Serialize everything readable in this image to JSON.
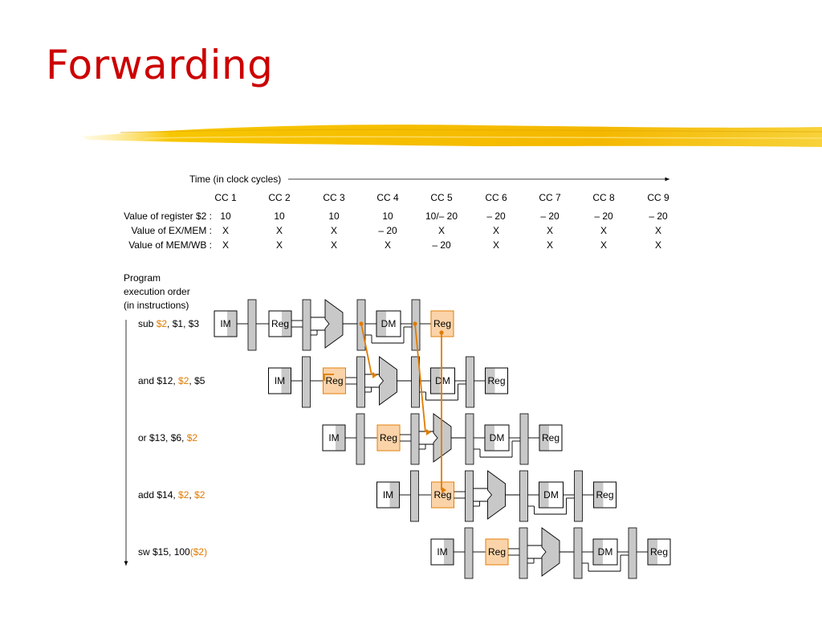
{
  "title": "Forwarding",
  "time_label": "Time (in clock cycles)",
  "cycles": [
    "CC 1",
    "CC 2",
    "CC 3",
    "CC 4",
    "CC 5",
    "CC 6",
    "CC 7",
    "CC 8",
    "CC 9"
  ],
  "value_rows": [
    {
      "label": "Value of register $2 :",
      "values": [
        "10",
        "10",
        "10",
        "10",
        "10/– 20",
        "– 20",
        "– 20",
        "– 20",
        "– 20"
      ]
    },
    {
      "label": "Value of EX/MEM :",
      "values": [
        "X",
        "X",
        "X",
        "– 20",
        "X",
        "X",
        "X",
        "X",
        "X"
      ]
    },
    {
      "label": "Value of MEM/WB :",
      "values": [
        "X",
        "X",
        "X",
        "X",
        "– 20",
        "X",
        "X",
        "X",
        "X"
      ]
    }
  ],
  "program_order_label": [
    "Program",
    "execution order",
    "(in instructions)"
  ],
  "stage_labels": {
    "im": "IM",
    "reg": "Reg",
    "dm": "DM"
  },
  "instructions": [
    {
      "parts": [
        {
          "t": "sub ",
          "hl": false
        },
        {
          "t": "$2",
          "hl": true
        },
        {
          "t": ", $1, $3",
          "hl": false
        }
      ],
      "hl_stages": [
        "wb"
      ]
    },
    {
      "parts": [
        {
          "t": "and $12, ",
          "hl": false
        },
        {
          "t": "$2",
          "hl": true
        },
        {
          "t": ", $5",
          "hl": false
        }
      ],
      "hl_stages": [
        "id"
      ]
    },
    {
      "parts": [
        {
          "t": "or $13, $6, ",
          "hl": false
        },
        {
          "t": "$2",
          "hl": true
        }
      ],
      "hl_stages": [
        "id"
      ]
    },
    {
      "parts": [
        {
          "t": "add $14, ",
          "hl": false
        },
        {
          "t": "$2",
          "hl": true
        },
        {
          "t": ", ",
          "hl": false
        },
        {
          "t": "$2",
          "hl": true
        }
      ],
      "hl_stages": [
        "id"
      ]
    },
    {
      "parts": [
        {
          "t": "sw $15, 100",
          "hl": false
        },
        {
          "t": "($2)",
          "hl": true
        }
      ],
      "hl_stages": [
        "id"
      ]
    }
  ],
  "colors": {
    "title": "#cc0000",
    "highlight": "#e07b00",
    "highlight_fill": "#fbd3a8",
    "pipeline_reg": "#c8c8c8",
    "stripe": "#f5c400"
  }
}
